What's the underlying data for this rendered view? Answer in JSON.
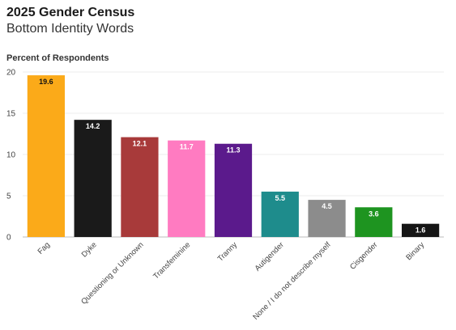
{
  "chart_data": {
    "type": "bar",
    "title": "2025 Gender Census",
    "subtitle": "Bottom Identity Words",
    "ylabel": "Percent of Respondents",
    "ylim": [
      0,
      20
    ],
    "yticks": [
      0,
      5,
      10,
      15,
      20
    ],
    "grid": true,
    "categories": [
      "Fag",
      "Dyke",
      "Questioning or Unknown",
      "Transfeminine",
      "Tranny",
      "Autigender",
      "None / I do not describe myself",
      "Cisgender",
      "Binary"
    ],
    "values": [
      19.6,
      14.2,
      12.1,
      11.7,
      11.3,
      5.5,
      4.5,
      3.6,
      1.6
    ],
    "value_labels": [
      "19.6",
      "14.2",
      "12.1",
      "11.7",
      "11.3",
      "5.5",
      "4.5",
      "3.6",
      "1.6"
    ],
    "colors": [
      "#FBAA19",
      "#1A1A1A",
      "#A83A3A",
      "#FF7BC1",
      "#5B1A8C",
      "#1E8C8C",
      "#8C8C8C",
      "#1E9420",
      "#151515"
    ],
    "label_colors": [
      "#111111",
      "#ffffff",
      "#ffffff",
      "#ffffff",
      "#ffffff",
      "#ffffff",
      "#ffffff",
      "#ffffff",
      "#ffffff"
    ]
  }
}
